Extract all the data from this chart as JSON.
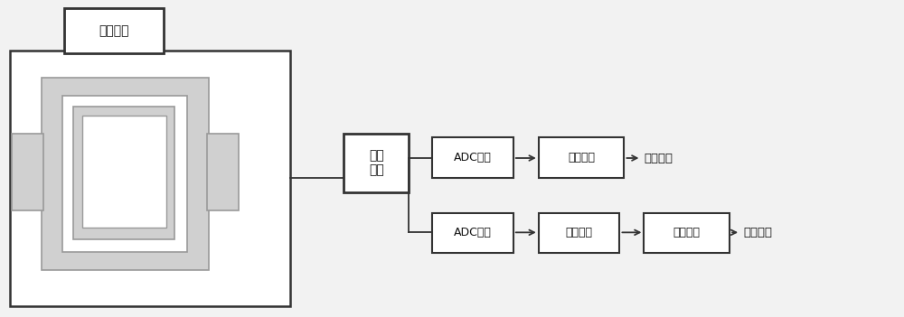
{
  "bg_color": "#f2f2f2",
  "white": "#ffffff",
  "light_gray": "#d0d0d0",
  "mid_gray": "#b8b8b8",
  "edge_dark": "#333333",
  "edge_med": "#666666",
  "edge_light": "#999999",
  "label_hv": "高压电源",
  "label_disc": "鉴别\n电路",
  "label_adc1": "ADC采集",
  "label_mc1": "多道分析",
  "label_proton": "质子能谱",
  "label_adc2": "ADC采集",
  "label_wf": "波形鉴别",
  "label_mc2": "多道分析",
  "label_neutron": "中子能谱"
}
